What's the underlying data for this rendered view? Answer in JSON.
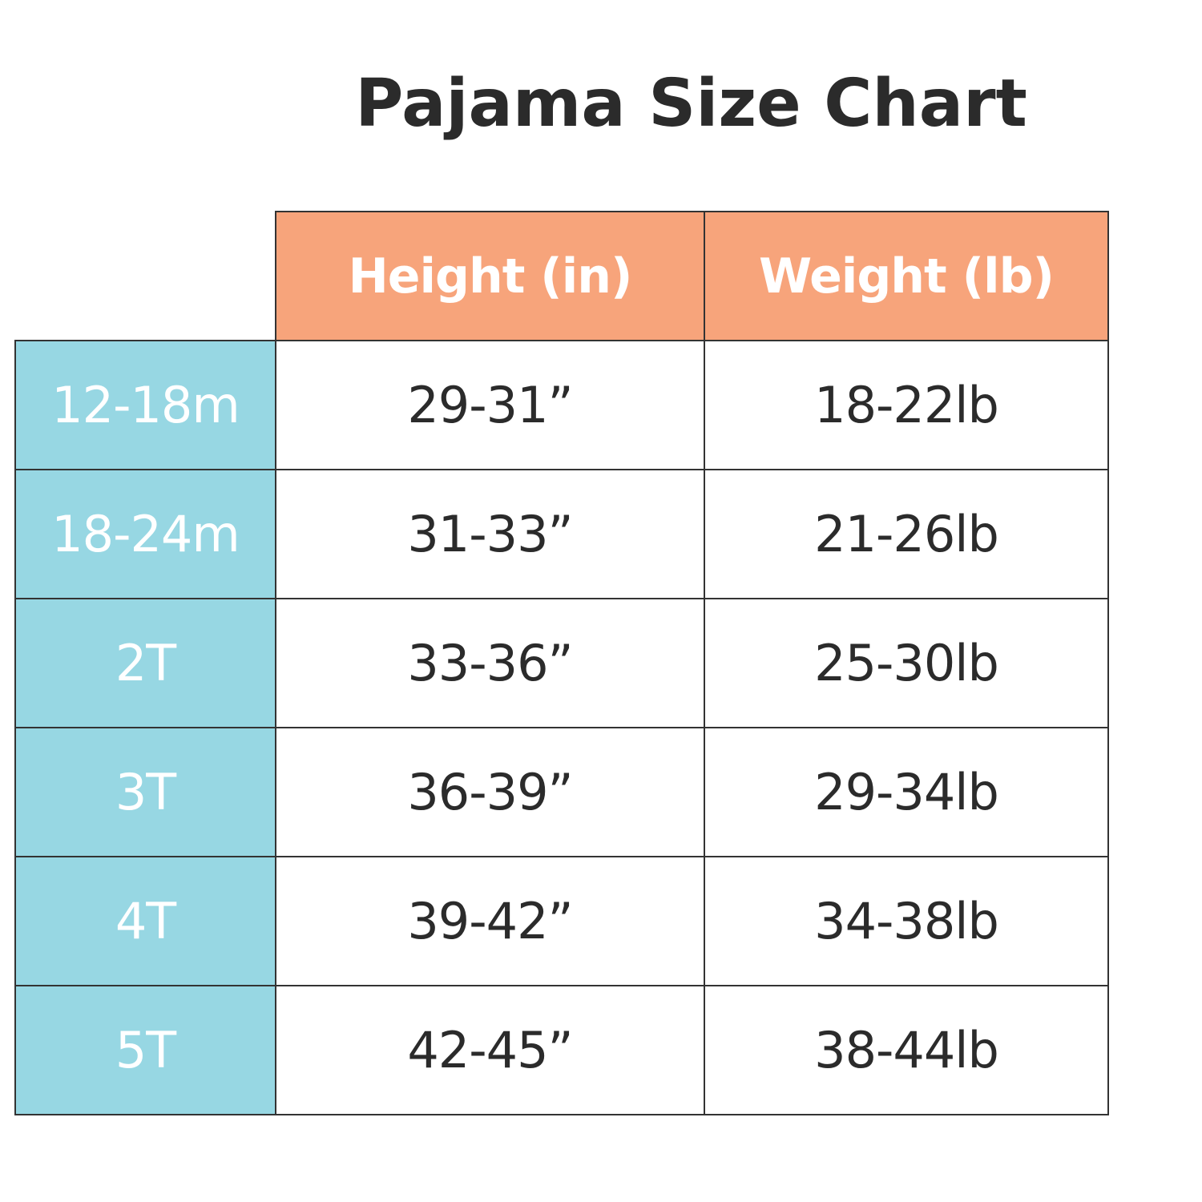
{
  "title": "Pajama Size Chart",
  "table": {
    "header": [
      "Height (in)",
      "Weight (lb)"
    ],
    "rows": [
      [
        "12-18m",
        "29-31”",
        "18-22lb"
      ],
      [
        "18-24m",
        "31-33”",
        "21-26lb"
      ],
      [
        "2T",
        "33-36”",
        "25-30lb"
      ],
      [
        "3T",
        "36-39”",
        "29-34lb"
      ],
      [
        "4T",
        "39-42”",
        "34-38lb"
      ],
      [
        "5T",
        "42-45”",
        "38-44lb"
      ]
    ]
  }
}
